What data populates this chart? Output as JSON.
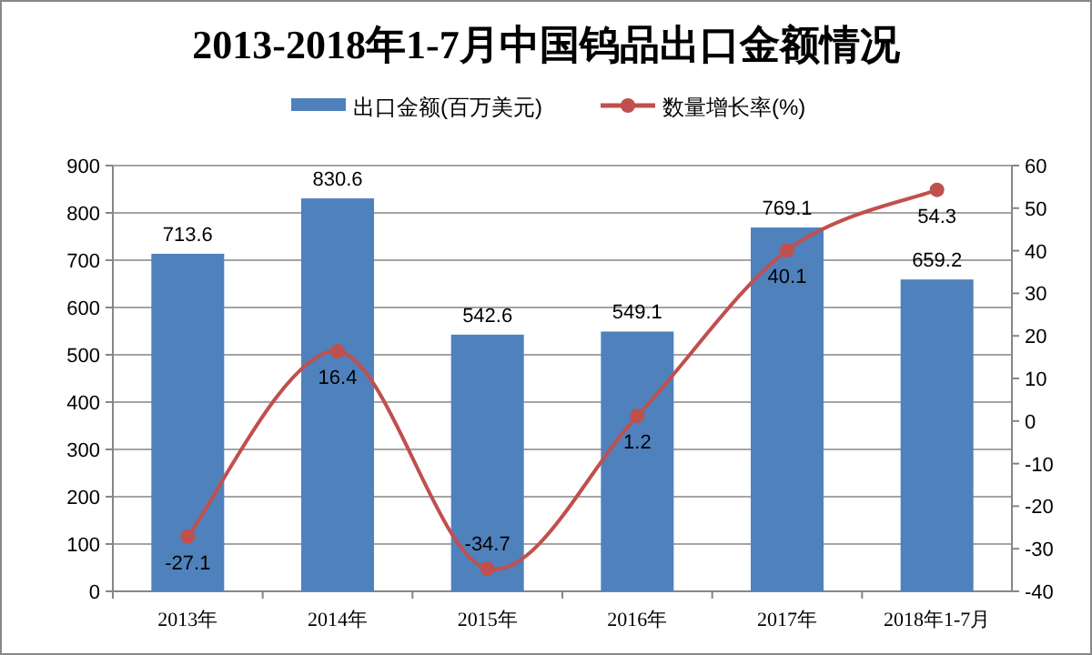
{
  "chart_data": {
    "type": "bar",
    "title": "2013-2018年1-7月中国钨品出口金额情况",
    "categories": [
      "2013年",
      "2014年",
      "2015年",
      "2016年",
      "2017年",
      "2018年1-7月"
    ],
    "series": [
      {
        "name": "出口金额(百万美元)",
        "color": "#4f81bd",
        "values": [
          713.6,
          830.6,
          542.6,
          549.1,
          769.1,
          659.2
        ]
      },
      {
        "name": "数量增长率(%)",
        "type": "line",
        "axis": "y2",
        "color": "#c0504d",
        "marker": "circle",
        "values": [
          -27.1,
          16.4,
          -34.7,
          1.2,
          40.1,
          54.3
        ]
      }
    ],
    "ylim": [
      0,
      900
    ],
    "yticks": [
      0,
      100,
      200,
      300,
      400,
      500,
      600,
      700,
      800,
      900
    ],
    "y2lim": [
      -40,
      60
    ],
    "y2ticks": [
      -40,
      -30,
      -20,
      -10,
      0,
      10,
      20,
      30,
      40,
      50,
      60
    ],
    "grid": "y",
    "legend": "top",
    "data_labels": true
  }
}
